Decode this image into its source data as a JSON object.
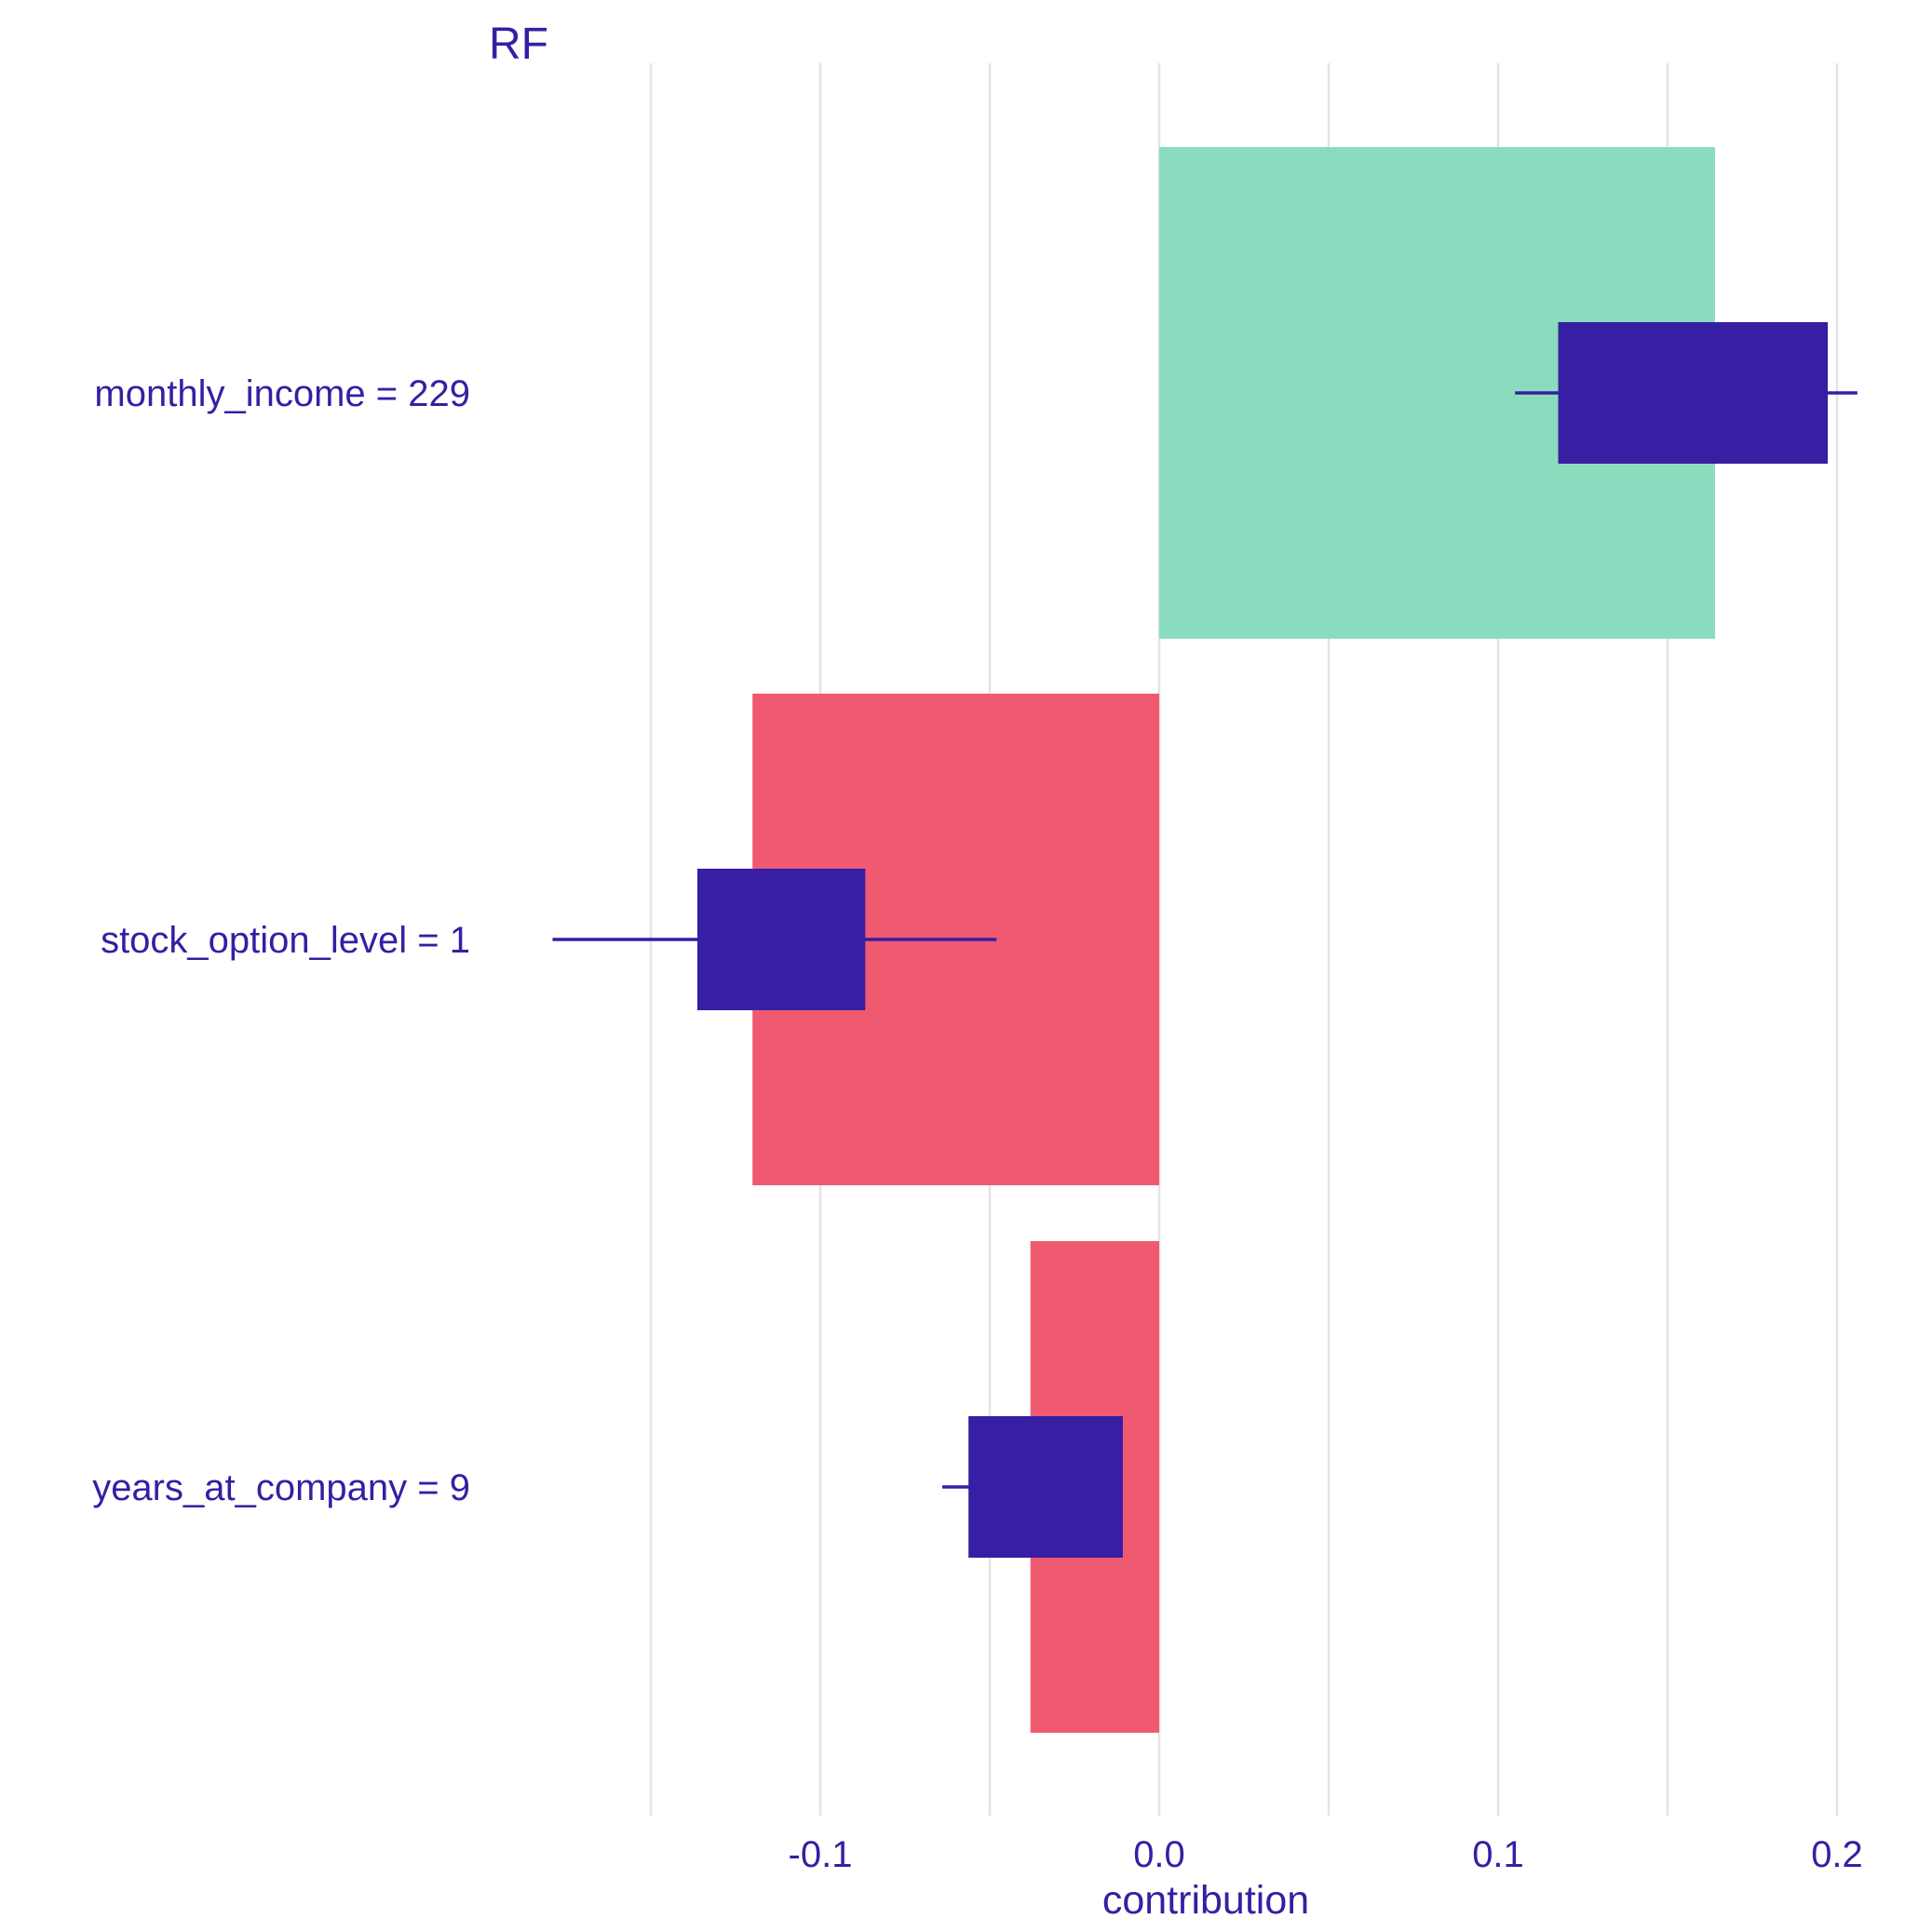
{
  "chart_data": {
    "type": "bar",
    "title": "RF",
    "xlabel": "contribution",
    "ylabel": "",
    "xlim": [
      -0.165,
      0.21
    ],
    "x_ticks": [
      -0.1,
      0.0,
      0.1,
      0.2
    ],
    "x_tick_labels": [
      "-0.1",
      "0.0",
      "0.1",
      "0.2"
    ],
    "grid": true,
    "categories": [
      "monthly_income = 229",
      "stock_option_level = 1",
      "years_at_company = 9"
    ],
    "values": [
      0.164,
      -0.12,
      -0.038
    ],
    "boxplots": [
      {
        "whisker_low": 0.105,
        "q1": 0.118,
        "q3": 0.197,
        "whisker_high": 0.206
      },
      {
        "whisker_low": -0.179,
        "q1": -0.136,
        "q3": -0.087,
        "whisker_high": -0.048
      },
      {
        "whisker_low": -0.064,
        "q1": -0.056,
        "q3": -0.011,
        "whisker_high": -0.011
      }
    ],
    "colors": {
      "positive": "#8bdcbe",
      "negative": "#f05a71",
      "box": "#371ea3",
      "grid": "#e3e3e3",
      "text": "#371ea3"
    }
  }
}
